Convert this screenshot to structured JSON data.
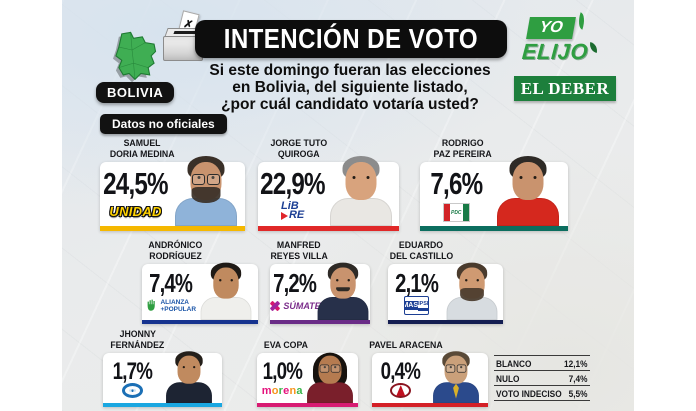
{
  "header": {
    "country_label": "BOLIVIA",
    "title": "INTENCIÓN DE VOTO",
    "subtitle_line1": "Si este domingo fueran las elecciones",
    "subtitle_line2": "en Bolivia, del siguiente listado,",
    "subtitle_line3": "¿por cuál candidato votaría usted?",
    "brand_yo": "YO",
    "brand_elijo": "ELIJO",
    "newspaper": "EL DEBER"
  },
  "disclaimer": "Datos no oficiales",
  "icons": {
    "ballot_mark": "✗"
  },
  "party_logos": {
    "unidad": "UNIDAD",
    "libre_line1": "LiB",
    "libre_line2": "RE",
    "pdc": "PDC",
    "alianza_line1": "ALIANZA",
    "alianza_line2": "+POPULAR",
    "sumate": "SÚMATE",
    "mas_line1": "MAS",
    "mas_line2": "IPSP",
    "morena": {
      "text": "morena",
      "colors": [
        "#e5127d",
        "#f7941d",
        "#39b54a",
        "#e5127d",
        "#f7941d",
        "#39b54a"
      ]
    }
  },
  "candidates": [
    {
      "name_line1": "SAMUEL",
      "name_line2": "DORIA MEDINA",
      "percent": "24,5%",
      "party": "UNIDAD",
      "accent": "#f5b800",
      "photo": {
        "skin": "#c9936e",
        "hair": "#3a3028",
        "shirt": "#8fb3d9",
        "glasses": true,
        "beard": true
      }
    },
    {
      "name_line1": "JORGE TUTO",
      "name_line2": "QUIROGA",
      "percent": "22,9%",
      "party": "LiBRE",
      "accent": "#e02828",
      "photo": {
        "skin": "#d8a37d",
        "hair": "#8c8c8c",
        "shirt": "#e9e7e3"
      }
    },
    {
      "name_line1": "RODRIGO",
      "name_line2": "PAZ PEREIRA",
      "percent": "7,6%",
      "party": "PDC",
      "accent": "#0c6e5f",
      "photo": {
        "skin": "#c9936e",
        "hair": "#2e2a26",
        "shirt": "#d5281e"
      }
    },
    {
      "name_line1": "ANDRÓNICO",
      "name_line2": "RODRÍGUEZ",
      "percent": "7,4%",
      "party": "ALIANZA +POPULAR",
      "accent": "#16338f",
      "photo": {
        "skin": "#c08a5f",
        "hair": "#1f1a16",
        "shirt": "#efefec"
      }
    },
    {
      "name_line1": "MANFRED",
      "name_line2": "REYES VILLA",
      "percent": "7,2%",
      "party": "SÚMATE",
      "accent": "#6a2c87",
      "photo": {
        "skin": "#c9936e",
        "hair": "#2e2a26",
        "shirt": "#27304a",
        "mustache": true
      }
    },
    {
      "name_line1": "EDUARDO",
      "name_line2": "DEL CASTILLO",
      "percent": "2,1%",
      "party": "MAS IPSP",
      "accent": "#141e52",
      "photo": {
        "skin": "#cf9a72",
        "hair": "#4a3b2d",
        "shirt": "#d7dce0",
        "beard": true
      }
    },
    {
      "name_line1": "JHONNY",
      "name_line2": "FERNÁNDEZ",
      "percent": "1,7%",
      "party": null,
      "accent": "#1aa7e1",
      "photo": {
        "skin": "#c08a5f",
        "hair": "#241f1a",
        "shirt": "#1d2433"
      }
    },
    {
      "name_line1": "EVA COPA",
      "name_line2": "",
      "percent": "1,0%",
      "party": "morena",
      "accent": "#d81b72",
      "photo": {
        "skin": "#b57b50",
        "hair": "#17120e",
        "shirt": "#7a1f2b",
        "glasses": true,
        "long_hair": true
      }
    },
    {
      "name_line1": "PAVEL ARACENA",
      "name_line2": "",
      "percent": "0,4%",
      "party": null,
      "accent": "#d42027",
      "photo": {
        "skin": "#caa07a",
        "hair": "#5a4a38",
        "shirt": "#2b4a8c",
        "glasses": true,
        "tie": "#d8b02a"
      }
    }
  ],
  "other_votes": {
    "rows": [
      {
        "label": "BLANCO",
        "value": "12,1%"
      },
      {
        "label": "NULO",
        "value": "7,4%"
      },
      {
        "label": "VOTO INDECISO",
        "value": "5,5%"
      }
    ]
  },
  "chart_data": {
    "type": "table",
    "title": "INTENCIÓN DE VOTO",
    "subtitle": "Si este domingo fueran las elecciones en Bolivia, del siguiente listado, ¿por cuál candidato votaría usted?",
    "note": "Datos no oficiales",
    "unit": "%",
    "categories": [
      "Samuel Doria Medina",
      "Jorge Tuto Quiroga",
      "Rodrigo Paz Pereira",
      "Andrónico Rodríguez",
      "Manfred Reyes Villa",
      "Eduardo Del Castillo",
      "Jhonny Fernández",
      "Eva Copa",
      "Pavel Aracena"
    ],
    "values": [
      24.5,
      22.9,
      7.6,
      7.4,
      7.2,
      2.1,
      1.7,
      1.0,
      0.4
    ],
    "party_labels": [
      "UNIDAD",
      "LiBRE",
      "PDC",
      "ALIANZA +POPULAR",
      "SÚMATE",
      "MAS IPSP",
      null,
      "morena",
      null
    ],
    "other_votes": {
      "BLANCO": 12.1,
      "NULO": 7.4,
      "VOTO INDECISO": 5.5
    }
  }
}
